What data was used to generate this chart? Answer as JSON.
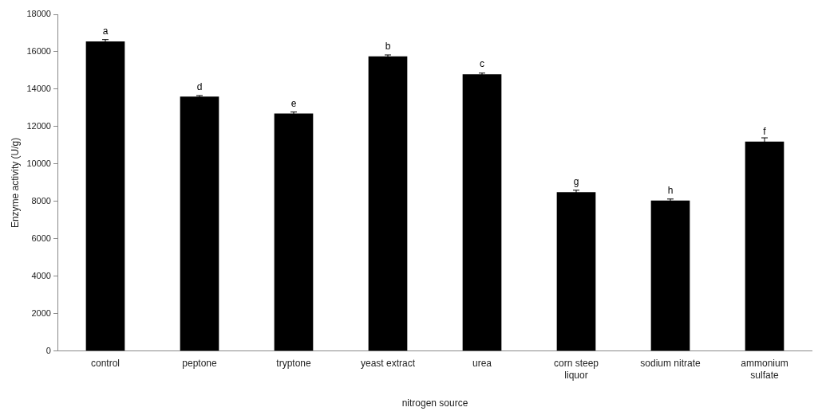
{
  "chart_data": {
    "type": "bar",
    "xlabel": "nitrogen source",
    "ylabel": "Enzyme activity (U/g)",
    "categories": [
      "control",
      "peptone",
      "tryptone",
      "yeast extract",
      "urea",
      "corn steep liquor",
      "sodium nitrate",
      "ammonium sulfate"
    ],
    "values": [
      16550,
      13600,
      12700,
      15750,
      14800,
      8500,
      8050,
      11200
    ],
    "errors": [
      100,
      60,
      80,
      80,
      60,
      100,
      80,
      200
    ],
    "color": "#000000",
    "ylim": [
      0,
      18000
    ],
    "yticks": [
      0,
      2000,
      4000,
      6000,
      8000,
      10000,
      12000,
      14000,
      16000,
      18000
    ],
    "grid": false,
    "legend": false,
    "annotations": [
      {
        "text": "a",
        "x": "control",
        "y": 16550
      },
      {
        "text": "d",
        "x": "peptone",
        "y": 13600
      },
      {
        "text": "e",
        "x": "tryptone",
        "y": 12700
      },
      {
        "text": "b",
        "x": "yeast extract",
        "y": 15750
      },
      {
        "text": "c",
        "x": "urea",
        "y": 14800
      },
      {
        "text": "g",
        "x": "corn steep liquor",
        "y": 8500
      },
      {
        "text": "h",
        "x": "sodium nitrate",
        "y": 8050
      },
      {
        "text": "f",
        "x": "ammonium sulfate",
        "y": 11200
      }
    ]
  }
}
